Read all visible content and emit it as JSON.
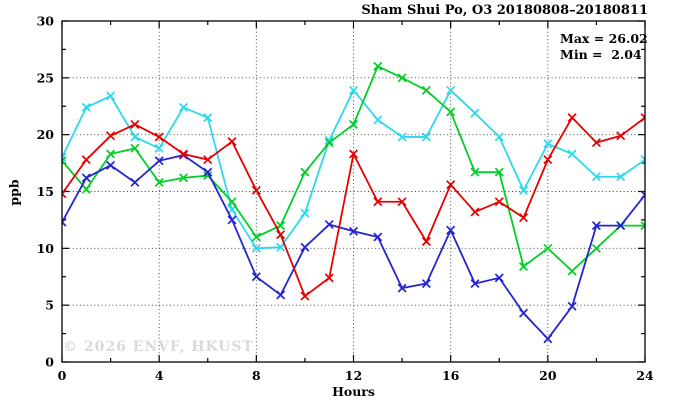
{
  "title": "Sham Shui Po, O3 20180808–20180811",
  "annotation": {
    "max_label": "Max = 26.02",
    "min_label": "Min =  2.04"
  },
  "watermark": "© 2026 ENVF, HKUST",
  "chart_data": {
    "type": "line",
    "title": "Sham Shui Po, O3 20180808–20180811",
    "xlabel": "Hours",
    "ylabel": "ppb",
    "xlim": [
      0,
      24
    ],
    "ylim": [
      0,
      30
    ],
    "xticks_major": [
      0,
      4,
      8,
      12,
      16,
      20,
      24
    ],
    "yticks_major": [
      0,
      5,
      10,
      15,
      20,
      25,
      30
    ],
    "grid": true,
    "legend": "none",
    "marker": "x-cross",
    "stats": {
      "max": 26.02,
      "min": 2.04
    },
    "x": [
      0,
      1,
      2,
      3,
      4,
      5,
      6,
      7,
      8,
      9,
      10,
      11,
      12,
      13,
      14,
      15,
      16,
      17,
      18,
      19,
      20,
      21,
      22,
      23,
      24
    ],
    "series": [
      {
        "name": "cyan",
        "color": "#2bd9ee",
        "values": [
          18.0,
          22.4,
          23.4,
          19.8,
          18.8,
          22.4,
          21.5,
          13.4,
          10.0,
          10.1,
          13.1,
          19.5,
          23.9,
          21.3,
          19.8,
          19.8,
          23.9,
          21.9,
          19.8,
          15.1,
          19.2,
          18.3,
          16.3,
          16.3,
          17.8
        ]
      },
      {
        "name": "green",
        "color": "#00cf25",
        "values": [
          17.7,
          15.2,
          18.3,
          18.8,
          15.8,
          16.2,
          16.4,
          14.1,
          11.0,
          12.0,
          16.7,
          19.3,
          20.9,
          26.02,
          25.0,
          23.9,
          22.0,
          16.7,
          16.7,
          8.4,
          10.0,
          8.0,
          10.0,
          12.0,
          12.0
        ]
      },
      {
        "name": "blue",
        "color": "#2424d4",
        "values": [
          12.3,
          16.2,
          17.3,
          15.8,
          17.7,
          18.2,
          16.7,
          12.5,
          7.5,
          5.9,
          10.1,
          12.1,
          11.5,
          11.0,
          6.5,
          6.9,
          11.6,
          6.9,
          7.4,
          4.3,
          2.04,
          4.9,
          12.0,
          12.0,
          14.7
        ]
      },
      {
        "name": "red",
        "color": "#e60000",
        "values": [
          14.8,
          17.8,
          19.9,
          20.9,
          19.8,
          18.3,
          17.8,
          19.4,
          15.1,
          11.2,
          5.8,
          7.4,
          18.3,
          14.1,
          14.1,
          10.6,
          15.6,
          13.2,
          14.1,
          12.7,
          17.8,
          21.5,
          19.3,
          19.9,
          21.5
        ]
      }
    ]
  }
}
